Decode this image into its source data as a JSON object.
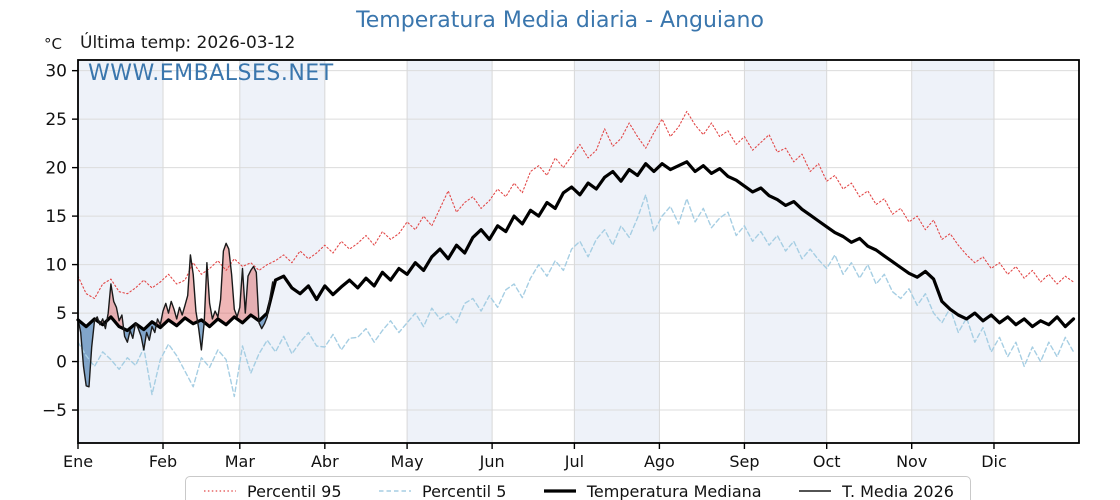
{
  "header": {
    "title": "Temperatura Media diaria - Anguiano",
    "y_unit_label": "°C",
    "last_temp_label": "Última temp: 2026-03-12",
    "watermark": "WWW.EMBALSES.NET",
    "title_color": "#3a76ad",
    "watermark_color": "#3a76ad"
  },
  "chart_data": {
    "type": "line",
    "x_tick_labels": [
      "Ene",
      "Feb",
      "Mar",
      "Abr",
      "May",
      "Jun",
      "Jul",
      "Ago",
      "Sep",
      "Oct",
      "Nov",
      "Dic"
    ],
    "month_start_days": [
      0,
      31,
      59,
      90,
      120,
      151,
      181,
      212,
      243,
      273,
      304,
      334
    ],
    "days_in_year": 365,
    "ylim": [
      -8.4,
      31.1
    ],
    "y_tick_values": [
      -5,
      0,
      5,
      10,
      15,
      20,
      25,
      30
    ],
    "y_tick_labels": [
      "−5",
      "0",
      "5",
      "10",
      "15",
      "20",
      "25",
      "30"
    ],
    "grid": true,
    "band_color": "#eef2f9",
    "grid_color": "#dcdcdc",
    "axis_color": "#000000",
    "legend_position": "bottom",
    "series": [
      {
        "name": "Percentil 95",
        "color": "#e24848",
        "dash": "dotted",
        "width": 1.1,
        "step_days": 3,
        "values": [
          8.8,
          7.0,
          6.5,
          8.0,
          8.5,
          7.2,
          7.0,
          7.6,
          8.4,
          7.6,
          8.2,
          9.0,
          8.0,
          8.4,
          10.2,
          9.0,
          9.6,
          10.4,
          9.4,
          10.6,
          9.8,
          10.2,
          9.4,
          10.0,
          10.4,
          11.0,
          10.2,
          11.4,
          10.6,
          11.2,
          12.0,
          11.2,
          12.4,
          11.6,
          12.2,
          13.0,
          12.0,
          13.4,
          12.6,
          13.2,
          14.4,
          13.6,
          15.0,
          14.0,
          15.8,
          17.6,
          15.4,
          16.4,
          17.0,
          15.8,
          16.6,
          17.8,
          17.0,
          18.4,
          17.4,
          19.6,
          20.2,
          19.2,
          21.0,
          20.0,
          21.2,
          22.4,
          21.0,
          21.8,
          24.0,
          22.2,
          23.0,
          24.6,
          23.2,
          22.0,
          23.6,
          25.0,
          23.2,
          24.2,
          25.8,
          24.4,
          23.4,
          24.6,
          23.2,
          23.8,
          22.4,
          23.2,
          21.8,
          22.6,
          23.4,
          21.6,
          22.0,
          20.6,
          21.4,
          19.6,
          20.4,
          18.6,
          19.2,
          17.8,
          18.4,
          17.0,
          17.6,
          16.2,
          16.8,
          15.2,
          15.8,
          14.4,
          15.0,
          13.6,
          14.6,
          12.6,
          13.2,
          12.0,
          11.0,
          10.2,
          10.8,
          9.6,
          10.2,
          9.0,
          9.8,
          8.6,
          9.4,
          8.2,
          9.0,
          8.0,
          8.8,
          8.2
        ]
      },
      {
        "name": "Percentil 5",
        "color": "#a6cee3",
        "dash": "dashed",
        "width": 1.4,
        "step_days": 3,
        "values": [
          2.0,
          0.6,
          -0.5,
          1.0,
          0.2,
          -0.8,
          0.4,
          -0.4,
          1.4,
          -3.4,
          0.2,
          1.8,
          0.6,
          -1.0,
          -2.6,
          0.4,
          -0.6,
          1.2,
          0.2,
          -3.6,
          1.6,
          -1.2,
          0.8,
          2.2,
          1.0,
          2.6,
          0.8,
          2.0,
          3.0,
          1.6,
          1.5,
          2.8,
          1.2,
          2.4,
          2.5,
          3.4,
          2.0,
          3.2,
          4.2,
          3.0,
          4.0,
          5.0,
          3.6,
          5.5,
          4.4,
          5.0,
          4.0,
          6.0,
          6.5,
          5.2,
          6.8,
          5.6,
          7.4,
          8.0,
          6.6,
          8.6,
          10.0,
          8.8,
          10.4,
          9.4,
          11.6,
          12.4,
          10.8,
          12.6,
          13.6,
          12.0,
          14.0,
          12.8,
          14.8,
          17.2,
          13.4,
          15.0,
          16.0,
          14.2,
          16.8,
          14.4,
          15.8,
          13.8,
          14.8,
          15.4,
          13.0,
          14.0,
          12.4,
          13.4,
          12.0,
          13.0,
          11.4,
          12.4,
          10.6,
          11.6,
          10.5,
          9.6,
          11.0,
          9.0,
          10.2,
          8.6,
          10.0,
          8.0,
          9.0,
          7.2,
          6.5,
          7.5,
          5.8,
          7.0,
          5.0,
          4.0,
          5.5,
          3.0,
          4.5,
          2.0,
          3.5,
          1.0,
          2.5,
          0.5,
          2.0,
          -0.5,
          1.5,
          0.0,
          2.0,
          0.5,
          2.5,
          1.0
        ]
      },
      {
        "name": "Temperatura Mediana",
        "color": "#000000",
        "dash": "solid",
        "width": 3.2,
        "step_days": 3,
        "values": [
          4.3,
          3.6,
          4.4,
          3.8,
          4.6,
          3.6,
          3.2,
          3.9,
          3.3,
          4.1,
          3.5,
          4.3,
          3.7,
          4.5,
          3.9,
          4.3,
          3.6,
          4.4,
          3.8,
          4.6,
          4.0,
          4.8,
          4.2,
          5.0,
          8.4,
          8.8,
          7.6,
          7.0,
          7.8,
          6.4,
          7.8,
          6.9,
          7.7,
          8.4,
          7.6,
          8.6,
          7.8,
          9.2,
          8.4,
          9.6,
          9.0,
          10.2,
          9.4,
          10.8,
          11.6,
          10.6,
          12.0,
          11.2,
          12.8,
          13.6,
          12.6,
          14.0,
          13.4,
          15.0,
          14.2,
          15.6,
          15.0,
          16.4,
          15.8,
          17.4,
          18.0,
          17.2,
          18.4,
          17.8,
          19.0,
          19.6,
          18.6,
          19.8,
          19.2,
          20.4,
          19.6,
          20.4,
          19.8,
          20.2,
          20.6,
          19.6,
          20.2,
          19.4,
          19.9,
          19.1,
          18.7,
          18.1,
          17.5,
          17.9,
          17.1,
          16.7,
          16.1,
          16.5,
          15.7,
          15.1,
          14.5,
          13.9,
          13.3,
          12.9,
          12.3,
          12.7,
          11.9,
          11.5,
          10.9,
          10.3,
          9.7,
          9.1,
          8.7,
          9.3,
          8.5,
          6.2,
          5.4,
          4.8,
          4.4,
          5.0,
          4.2,
          4.8,
          4.0,
          4.6,
          3.8,
          4.4,
          3.6,
          4.2,
          3.8,
          4.6,
          3.6,
          4.4
        ]
      },
      {
        "name": "T. Media 2026",
        "color": "#1a1a1a",
        "dash": "solid",
        "width": 1.4,
        "step_days": 1,
        "values": [
          4.4,
          3.0,
          -0.5,
          -2.5,
          -2.6,
          1.5,
          4.2,
          4.6,
          3.8,
          4.4,
          3.4,
          5.0,
          8.0,
          6.2,
          5.6,
          4.2,
          4.8,
          2.6,
          2.0,
          3.2,
          2.4,
          4.0,
          3.4,
          2.6,
          1.2,
          3.0,
          2.2,
          3.6,
          3.0,
          4.4,
          3.8,
          5.2,
          6.0,
          5.0,
          6.2,
          5.4,
          4.4,
          5.6,
          4.8,
          5.8,
          6.8,
          11.0,
          9.0,
          5.2,
          3.4,
          1.2,
          4.0,
          10.2,
          6.0,
          4.4,
          5.2,
          4.6,
          6.4,
          11.4,
          12.2,
          11.6,
          9.0,
          5.4,
          4.6,
          5.6,
          9.6,
          5.0,
          8.8,
          9.4,
          9.8,
          9.2,
          4.0,
          3.4,
          3.9,
          4.6,
          6.6,
          8.2
        ]
      }
    ],
    "fill_between": {
      "upper": "T. Media 2026",
      "base": "Temperatura Mediana",
      "above_color": "rgba(217,83,83,0.42)",
      "below_color": "rgba(62,118,172,0.62)"
    }
  },
  "legend": {
    "items": [
      "Percentil 95",
      "Percentil 5",
      "Temperatura Mediana",
      "T. Media 2026"
    ]
  }
}
